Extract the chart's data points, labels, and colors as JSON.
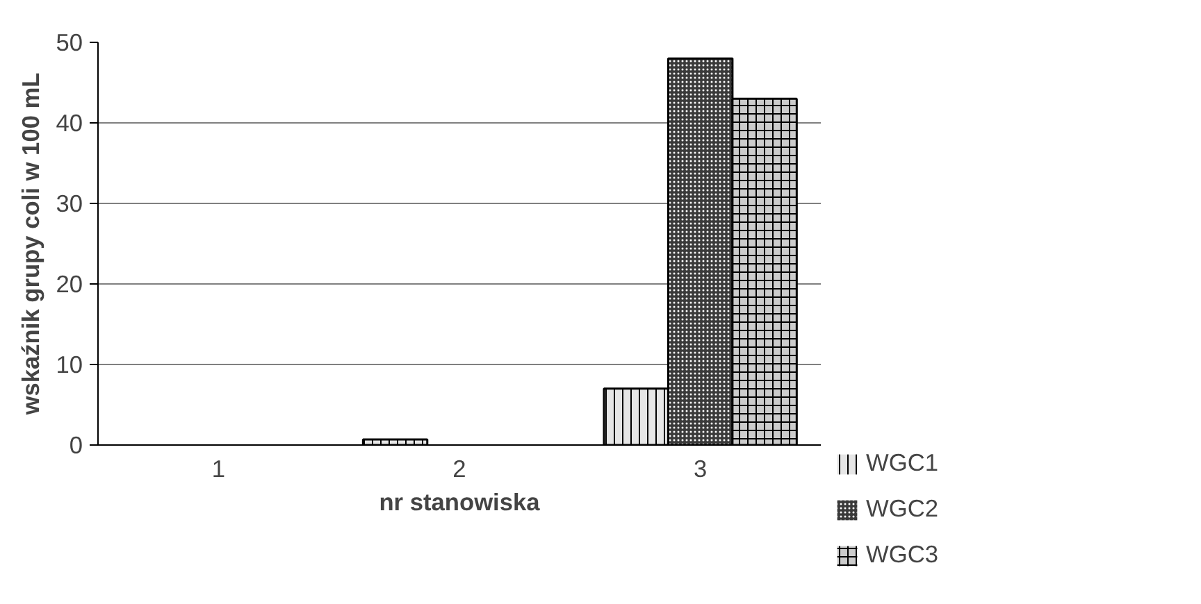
{
  "chart_data": {
    "type": "bar",
    "xlabel": "nr stanowiska",
    "ylabel": "wskaźnik grupy coli w 100 mL",
    "categories": [
      "1",
      "2",
      "3"
    ],
    "series": [
      {
        "name": "WGC1",
        "color": "#e6e6e6",
        "values": [
          0,
          0.7,
          7
        ]
      },
      {
        "name": "WGC2",
        "color": "#3a3a3a",
        "values": [
          0,
          0,
          48
        ]
      },
      {
        "name": "WGC3",
        "color": "#cccccc",
        "values": [
          0,
          0,
          43
        ]
      }
    ],
    "ylim": [
      0,
      50
    ],
    "yticks": [
      0,
      10,
      20,
      30,
      40,
      50
    ],
    "grid": "y",
    "legend": "right"
  }
}
